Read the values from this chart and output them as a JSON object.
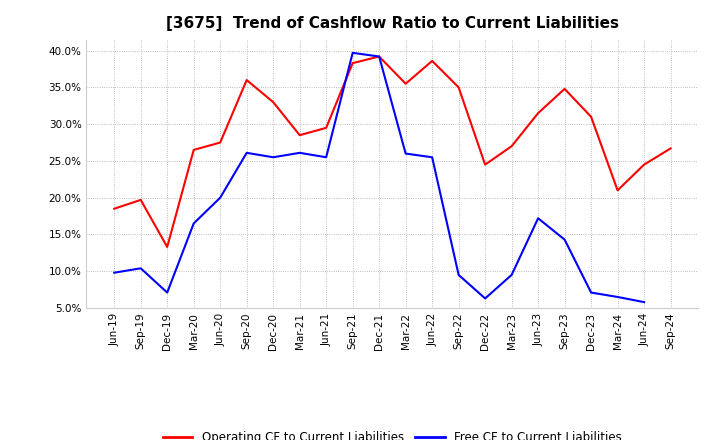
{
  "title": "[3675]  Trend of Cashflow Ratio to Current Liabilities",
  "x_labels": [
    "Jun-19",
    "Sep-19",
    "Dec-19",
    "Mar-20",
    "Jun-20",
    "Sep-20",
    "Dec-20",
    "Mar-21",
    "Jun-21",
    "Sep-21",
    "Dec-21",
    "Mar-22",
    "Jun-22",
    "Sep-22",
    "Dec-22",
    "Mar-23",
    "Jun-23",
    "Sep-23",
    "Dec-23",
    "Mar-24",
    "Jun-24",
    "Sep-24"
  ],
  "operating_cf": [
    0.185,
    0.197,
    0.133,
    0.265,
    0.275,
    0.36,
    0.33,
    0.285,
    0.295,
    0.383,
    0.392,
    0.355,
    0.386,
    0.35,
    0.245,
    0.27,
    0.315,
    0.348,
    0.31,
    0.21,
    0.245,
    0.267
  ],
  "free_cf": [
    0.098,
    0.104,
    0.071,
    0.165,
    0.2,
    0.261,
    0.255,
    0.261,
    0.255,
    0.397,
    0.392,
    0.26,
    0.255,
    0.095,
    0.063,
    0.095,
    0.172,
    0.143,
    0.071,
    0.065,
    0.058,
    null
  ],
  "operating_color": "#ff0000",
  "free_color": "#0000ff",
  "ylim_min": 0.05,
  "ylim_max": 0.415,
  "yticks": [
    0.05,
    0.1,
    0.15,
    0.2,
    0.25,
    0.3,
    0.35,
    0.4
  ],
  "legend_op": "Operating CF to Current Liabilities",
  "legend_free": "Free CF to Current Liabilities",
  "bg_color": "#ffffff",
  "grid_color": "#aaaaaa",
  "title_fontsize": 11,
  "tick_fontsize": 7.5,
  "legend_fontsize": 8.5
}
